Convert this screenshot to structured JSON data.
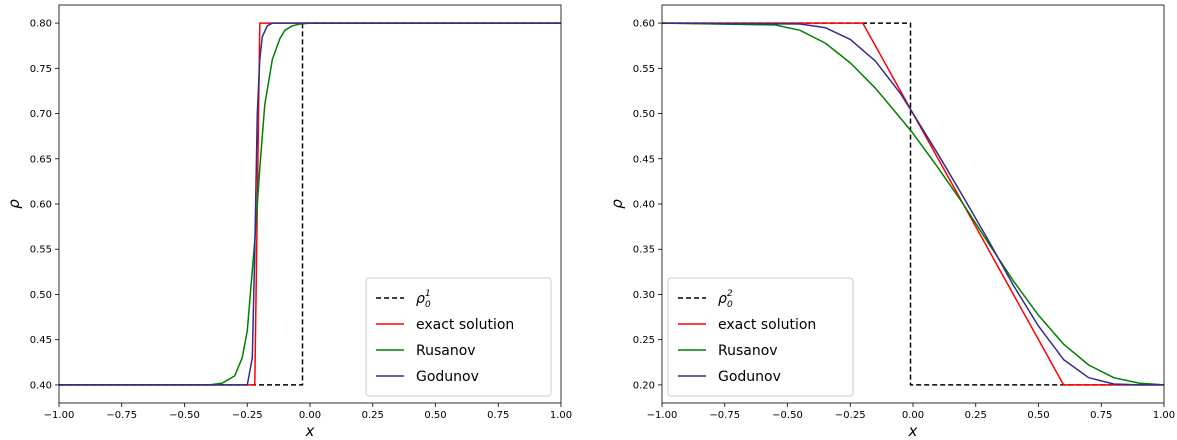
{
  "chart_data": [
    {
      "type": "line",
      "xlabel": "x",
      "ylabel": "ρ",
      "xlim": [
        -1.0,
        1.0
      ],
      "ylim": [
        0.38,
        0.82
      ],
      "xticks": [
        "−1.00",
        "−0.75",
        "−0.50",
        "−0.25",
        "0.00",
        "0.25",
        "0.50",
        "0.75",
        "1.00"
      ],
      "xtick_values": [
        -1.0,
        -0.75,
        -0.5,
        -0.25,
        0.0,
        0.25,
        0.5,
        0.75,
        1.0
      ],
      "yticks": [
        "0.40",
        "0.45",
        "0.50",
        "0.55",
        "0.60",
        "0.65",
        "0.70",
        "0.75",
        "0.80"
      ],
      "ytick_values": [
        0.4,
        0.45,
        0.5,
        0.55,
        0.6,
        0.65,
        0.7,
        0.75,
        0.8
      ],
      "grid": false,
      "legend_position": "bottom-right",
      "series": [
        {
          "name": "ρ",
          "sup": "1",
          "sub": "0",
          "color": "#000000",
          "style": "dashed",
          "x": [
            -1.0,
            -0.03,
            -0.03,
            1.0
          ],
          "y": [
            0.4,
            0.4,
            0.8,
            0.8
          ]
        },
        {
          "name": "exact solution",
          "color": "#ff0000",
          "style": "solid",
          "x": [
            -1.0,
            -0.22,
            -0.2,
            1.0
          ],
          "y": [
            0.4,
            0.4,
            0.8,
            0.8
          ]
        },
        {
          "name": "Rusanov",
          "color": "#008000",
          "style": "solid",
          "x": [
            -1.0,
            -0.4,
            -0.35,
            -0.3,
            -0.27,
            -0.25,
            -0.22,
            -0.2,
            -0.18,
            -0.15,
            -0.12,
            -0.1,
            -0.07,
            -0.04,
            0.0,
            1.0
          ],
          "y": [
            0.4,
            0.4,
            0.402,
            0.41,
            0.43,
            0.46,
            0.56,
            0.64,
            0.71,
            0.76,
            0.783,
            0.792,
            0.797,
            0.799,
            0.8,
            0.8
          ]
        },
        {
          "name": "Godunov",
          "color": "#2e2e8c",
          "style": "solid",
          "x": [
            -1.0,
            -0.25,
            -0.23,
            -0.22,
            -0.21,
            -0.2,
            -0.19,
            -0.17,
            -0.15,
            1.0
          ],
          "y": [
            0.4,
            0.4,
            0.43,
            0.55,
            0.7,
            0.76,
            0.785,
            0.797,
            0.8,
            0.8
          ]
        }
      ]
    },
    {
      "type": "line",
      "xlabel": "x",
      "ylabel": "ρ",
      "xlim": [
        -1.0,
        1.0
      ],
      "ylim": [
        0.18,
        0.62
      ],
      "xticks": [
        "−1.00",
        "−0.75",
        "−0.50",
        "−0.25",
        "0.00",
        "0.25",
        "0.50",
        "0.75",
        "1.00"
      ],
      "xtick_values": [
        -1.0,
        -0.75,
        -0.5,
        -0.25,
        0.0,
        0.25,
        0.5,
        0.75,
        1.0
      ],
      "yticks": [
        "0.20",
        "0.25",
        "0.30",
        "0.35",
        "0.40",
        "0.45",
        "0.50",
        "0.55",
        "0.60"
      ],
      "ytick_values": [
        0.2,
        0.25,
        0.3,
        0.35,
        0.4,
        0.45,
        0.5,
        0.55,
        0.6
      ],
      "grid": false,
      "legend_position": "bottom-left",
      "series": [
        {
          "name": "ρ",
          "sup": "2",
          "sub": "0",
          "color": "#000000",
          "style": "dashed",
          "x": [
            -1.0,
            -0.01,
            -0.01,
            1.0
          ],
          "y": [
            0.6,
            0.6,
            0.2,
            0.2
          ]
        },
        {
          "name": "exact solution",
          "color": "#ff0000",
          "style": "solid",
          "x": [
            -1.0,
            -0.2,
            0.6,
            1.0
          ],
          "y": [
            0.6,
            0.6,
            0.2,
            0.2
          ]
        },
        {
          "name": "Rusanov",
          "color": "#008000",
          "style": "solid",
          "x": [
            -1.0,
            -0.55,
            -0.45,
            -0.35,
            -0.25,
            -0.15,
            -0.05,
            0.0,
            0.1,
            0.2,
            0.3,
            0.4,
            0.5,
            0.6,
            0.7,
            0.8,
            0.9,
            1.0
          ],
          "y": [
            0.6,
            0.598,
            0.592,
            0.578,
            0.556,
            0.528,
            0.495,
            0.478,
            0.44,
            0.4,
            0.357,
            0.315,
            0.277,
            0.245,
            0.222,
            0.208,
            0.202,
            0.2
          ]
        },
        {
          "name": "Godunov",
          "color": "#2e2e8c",
          "style": "solid",
          "x": [
            -1.0,
            -0.45,
            -0.35,
            -0.25,
            -0.15,
            -0.05,
            0.0,
            0.1,
            0.2,
            0.3,
            0.4,
            0.5,
            0.6,
            0.7,
            0.8,
            0.9,
            1.0
          ],
          "y": [
            0.6,
            0.599,
            0.595,
            0.582,
            0.558,
            0.522,
            0.5,
            0.455,
            0.408,
            0.36,
            0.31,
            0.265,
            0.228,
            0.208,
            0.201,
            0.2,
            0.2
          ]
        }
      ]
    }
  ]
}
